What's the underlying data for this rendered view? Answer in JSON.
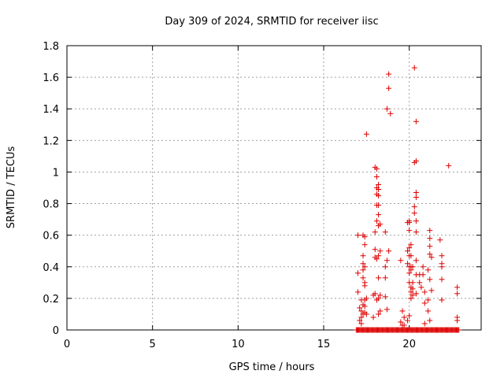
{
  "chart_data": {
    "type": "scatter",
    "title": "Day 309 of 2024, SRMTID for receiver iisc",
    "xlabel": "GPS time / hours",
    "ylabel": "SRMTID / TECUs",
    "xlim": [
      0,
      24.2
    ],
    "ylim": [
      0,
      1.8
    ],
    "x_ticks": [
      0,
      5,
      10,
      15,
      20
    ],
    "y_ticks": [
      0,
      0.2,
      0.4,
      0.6,
      0.8,
      1,
      1.2,
      1.4,
      1.6,
      1.8
    ],
    "x_tick_labels": [
      "0",
      "5",
      "10",
      "15",
      "20"
    ],
    "y_tick_labels": [
      "0",
      "0.2",
      "0.4",
      "0.6",
      "0.8",
      "1",
      "1.2",
      "1.4",
      "1.6",
      "1.8"
    ],
    "grid": true,
    "marker": "+",
    "marker_color": "#dd0000",
    "series": [
      {
        "name": "SRMTID",
        "zero_baseline_range": [
          16.9,
          22.9
        ],
        "points": [
          [
            17.0,
            0.6
          ],
          [
            17.0,
            0.36
          ],
          [
            17.0,
            0.24
          ],
          [
            17.1,
            0.14
          ],
          [
            17.1,
            0.06
          ],
          [
            17.2,
            0.08
          ],
          [
            17.2,
            0.12
          ],
          [
            17.2,
            0.19
          ],
          [
            17.2,
            0.04
          ],
          [
            17.3,
            0.6
          ],
          [
            17.3,
            0.47
          ],
          [
            17.3,
            0.42
          ],
          [
            17.3,
            0.38
          ],
          [
            17.3,
            0.33
          ],
          [
            17.3,
            0.16
          ],
          [
            17.3,
            0.1
          ],
          [
            17.4,
            0.59
          ],
          [
            17.4,
            0.54
          ],
          [
            17.4,
            0.4
          ],
          [
            17.4,
            0.3
          ],
          [
            17.4,
            0.28
          ],
          [
            17.4,
            0.19
          ],
          [
            17.4,
            0.15
          ],
          [
            17.4,
            0.11
          ],
          [
            17.5,
            1.24
          ],
          [
            17.5,
            0.2
          ],
          [
            17.5,
            0.1
          ],
          [
            17.9,
            0.22
          ],
          [
            17.9,
            0.08
          ],
          [
            18.0,
            1.03
          ],
          [
            18.0,
            0.62
          ],
          [
            18.0,
            0.51
          ],
          [
            18.0,
            0.46
          ],
          [
            18.0,
            0.23
          ],
          [
            18.1,
            1.02
          ],
          [
            18.1,
            0.97
          ],
          [
            18.1,
            0.9
          ],
          [
            18.1,
            0.86
          ],
          [
            18.1,
            0.79
          ],
          [
            18.1,
            0.69
          ],
          [
            18.1,
            0.45
          ],
          [
            18.1,
            0.19
          ],
          [
            18.2,
            0.92
          ],
          [
            18.2,
            0.89
          ],
          [
            18.2,
            0.85
          ],
          [
            18.2,
            0.79
          ],
          [
            18.2,
            0.73
          ],
          [
            18.2,
            0.66
          ],
          [
            18.2,
            0.47
          ],
          [
            18.2,
            0.33
          ],
          [
            18.2,
            0.2
          ],
          [
            18.2,
            0.1
          ],
          [
            18.3,
            0.67
          ],
          [
            18.3,
            0.5
          ],
          [
            18.3,
            0.22
          ],
          [
            18.3,
            0.12
          ],
          [
            18.6,
            0.62
          ],
          [
            18.6,
            0.4
          ],
          [
            18.6,
            0.33
          ],
          [
            18.6,
            0.21
          ],
          [
            18.7,
            1.4
          ],
          [
            18.7,
            0.44
          ],
          [
            18.7,
            0.13
          ],
          [
            18.8,
            1.62
          ],
          [
            18.8,
            1.53
          ],
          [
            18.8,
            0.5
          ],
          [
            18.9,
            1.37
          ],
          [
            19.5,
            0.44
          ],
          [
            19.5,
            0.05
          ],
          [
            19.6,
            0.12
          ],
          [
            19.6,
            0.03
          ],
          [
            19.7,
            0.08
          ],
          [
            19.7,
            0.03
          ],
          [
            19.9,
            0.68
          ],
          [
            19.9,
            0.5
          ],
          [
            19.9,
            0.42
          ],
          [
            19.9,
            0.06
          ],
          [
            20.0,
            0.69
          ],
          [
            20.0,
            0.68
          ],
          [
            20.0,
            0.63
          ],
          [
            20.0,
            0.52
          ],
          [
            20.0,
            0.47
          ],
          [
            20.0,
            0.4
          ],
          [
            20.0,
            0.36
          ],
          [
            20.0,
            0.3
          ],
          [
            20.0,
            0.09
          ],
          [
            20.1,
            0.54
          ],
          [
            20.1,
            0.47
          ],
          [
            20.1,
            0.4
          ],
          [
            20.1,
            0.38
          ],
          [
            20.1,
            0.27
          ],
          [
            20.1,
            0.24
          ],
          [
            20.1,
            0.2
          ],
          [
            20.2,
            0.4
          ],
          [
            20.2,
            0.3
          ],
          [
            20.2,
            0.26
          ],
          [
            20.2,
            0.22
          ],
          [
            20.3,
            1.66
          ],
          [
            20.3,
            1.06
          ],
          [
            20.3,
            0.78
          ],
          [
            20.3,
            0.74
          ],
          [
            20.4,
            1.32
          ],
          [
            20.4,
            1.07
          ],
          [
            20.4,
            0.87
          ],
          [
            20.4,
            0.84
          ],
          [
            20.4,
            0.69
          ],
          [
            20.4,
            0.62
          ],
          [
            20.4,
            0.44
          ],
          [
            20.4,
            0.35
          ],
          [
            20.4,
            0.23
          ],
          [
            20.6,
            0.35
          ],
          [
            20.6,
            0.3
          ],
          [
            20.7,
            0.27
          ],
          [
            20.8,
            0.4
          ],
          [
            20.8,
            0.35
          ],
          [
            20.9,
            0.24
          ],
          [
            20.9,
            0.17
          ],
          [
            20.9,
            0.04
          ],
          [
            21.1,
            0.38
          ],
          [
            21.1,
            0.19
          ],
          [
            21.1,
            0.12
          ],
          [
            21.2,
            0.63
          ],
          [
            21.2,
            0.58
          ],
          [
            21.2,
            0.53
          ],
          [
            21.2,
            0.48
          ],
          [
            21.2,
            0.32
          ],
          [
            21.2,
            0.06
          ],
          [
            21.3,
            0.46
          ],
          [
            21.3,
            0.25
          ],
          [
            21.8,
            0.57
          ],
          [
            21.9,
            0.47
          ],
          [
            21.9,
            0.42
          ],
          [
            21.9,
            0.4
          ],
          [
            21.9,
            0.32
          ],
          [
            21.9,
            0.19
          ],
          [
            22.3,
            1.04
          ],
          [
            22.8,
            0.27
          ],
          [
            22.8,
            0.23
          ],
          [
            22.8,
            0.08
          ],
          [
            22.8,
            0.06
          ]
        ]
      }
    ]
  }
}
